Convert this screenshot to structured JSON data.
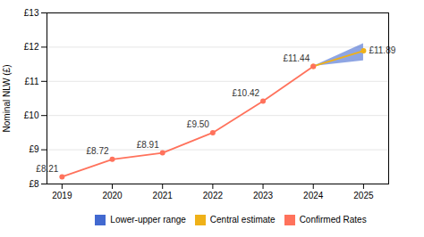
{
  "chart_data": {
    "type": "line",
    "ylabel": "Nominal NLW (£)",
    "xlim": [
      2018.7,
      2025.5
    ],
    "xticks": [
      2019,
      2020,
      2021,
      2022,
      2023,
      2024,
      2025
    ],
    "ylim": [
      8.0,
      13.0
    ],
    "yticks": [
      {
        "value": 8,
        "label": "£8"
      },
      {
        "value": 9,
        "label": "£9"
      },
      {
        "value": 10,
        "label": "£10"
      },
      {
        "value": 11,
        "label": "£11"
      },
      {
        "value": 12,
        "label": "£12"
      },
      {
        "value": 13,
        "label": "£13"
      }
    ],
    "grid": true,
    "legend": "bottom",
    "data_labels": true,
    "series": [
      {
        "name": "Lower-upper range",
        "type": "area",
        "x": [
          2024,
          2025
        ],
        "lower": [
          11.44,
          11.6
        ],
        "upper": [
          11.44,
          12.1
        ]
      },
      {
        "name": "Central estimate",
        "type": "line",
        "marker": "circle",
        "x": [
          2024,
          2025
        ],
        "values": [
          11.44,
          11.89
        ],
        "value_labels": [
          null,
          "£11.89"
        ]
      },
      {
        "name": "Confirmed Rates",
        "type": "line",
        "marker": "circle",
        "x": [
          2019,
          2020,
          2021,
          2022,
          2023,
          2024
        ],
        "values": [
          8.21,
          8.72,
          8.91,
          9.5,
          10.42,
          11.44
        ],
        "value_labels": [
          "£8.21",
          "£8.72",
          "£8.91",
          "£9.50",
          "£10.42",
          "£11.44"
        ]
      }
    ]
  }
}
